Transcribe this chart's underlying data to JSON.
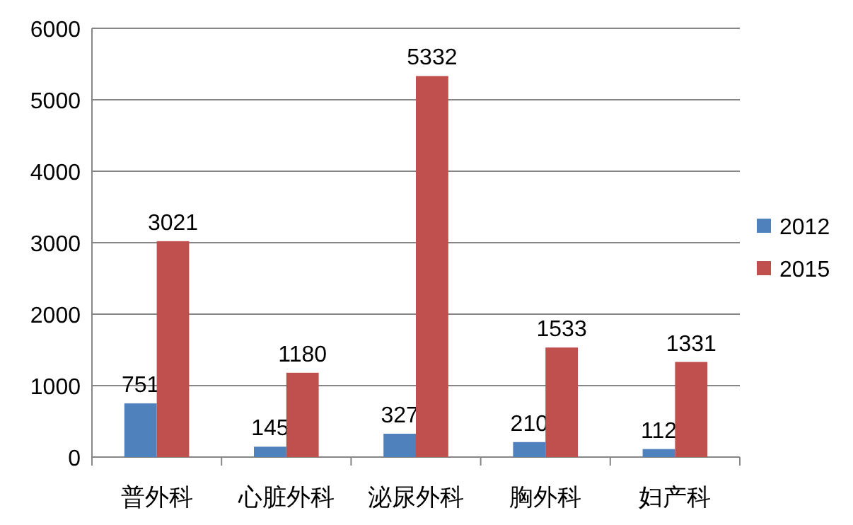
{
  "chart_data": {
    "type": "bar",
    "categories": [
      "普外科",
      "心脏外科",
      "泌尿外科",
      "胸外科",
      "妇产科"
    ],
    "series": [
      {
        "name": "2012",
        "color": "#4f81bd",
        "values": [
          751,
          145,
          327,
          210,
          112
        ]
      },
      {
        "name": "2015",
        "color": "#c0504d",
        "values": [
          3021,
          1180,
          5332,
          1533,
          1331
        ]
      }
    ],
    "ylim": [
      0,
      6000
    ],
    "yticks": [
      0,
      1000,
      2000,
      3000,
      4000,
      5000,
      6000
    ],
    "grid": "y",
    "legend": "right",
    "data_labels": true
  }
}
